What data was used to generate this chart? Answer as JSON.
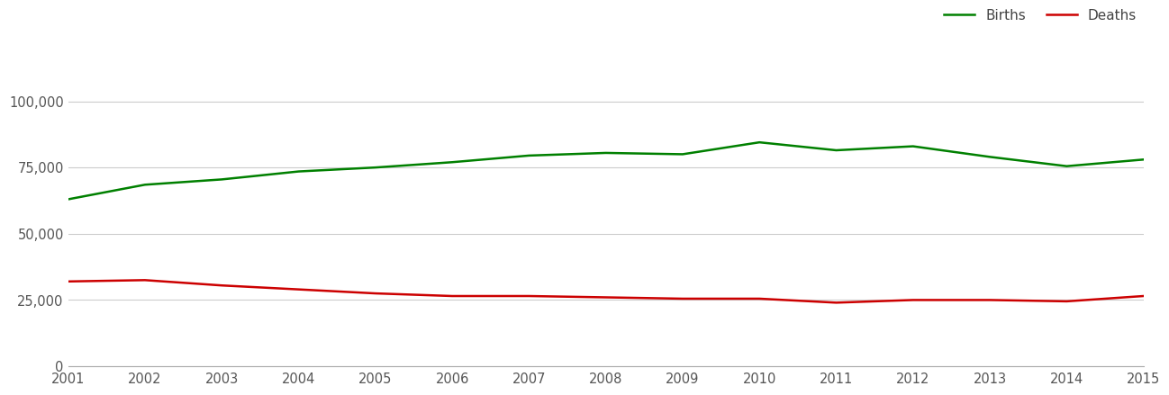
{
  "years": [
    2001,
    2002,
    2003,
    2004,
    2005,
    2006,
    2007,
    2008,
    2009,
    2010,
    2011,
    2012,
    2013,
    2014,
    2015
  ],
  "births": [
    63000,
    68500,
    70500,
    73500,
    75000,
    77000,
    79500,
    80500,
    80000,
    84500,
    81500,
    83000,
    79000,
    75500,
    78000
  ],
  "deaths": [
    32000,
    32500,
    30500,
    29000,
    27500,
    26500,
    26500,
    26000,
    25500,
    25500,
    24000,
    25000,
    25000,
    24500,
    26500
  ],
  "births_color": "#008000",
  "deaths_color": "#cc0000",
  "line_width": 1.8,
  "ylim": [
    0,
    110000
  ],
  "yticks": [
    0,
    25000,
    50000,
    75000,
    100000
  ],
  "ytick_labels": [
    "0",
    "25,000",
    "50,000",
    "75,000",
    "100,000"
  ],
  "grid_color": "#cccccc",
  "background_color": "#ffffff",
  "legend_births": "Births",
  "legend_deaths": "Deaths",
  "legend_fontsize": 11,
  "tick_fontsize": 10.5,
  "tick_color": "#555555",
  "spine_color": "#aaaaaa"
}
